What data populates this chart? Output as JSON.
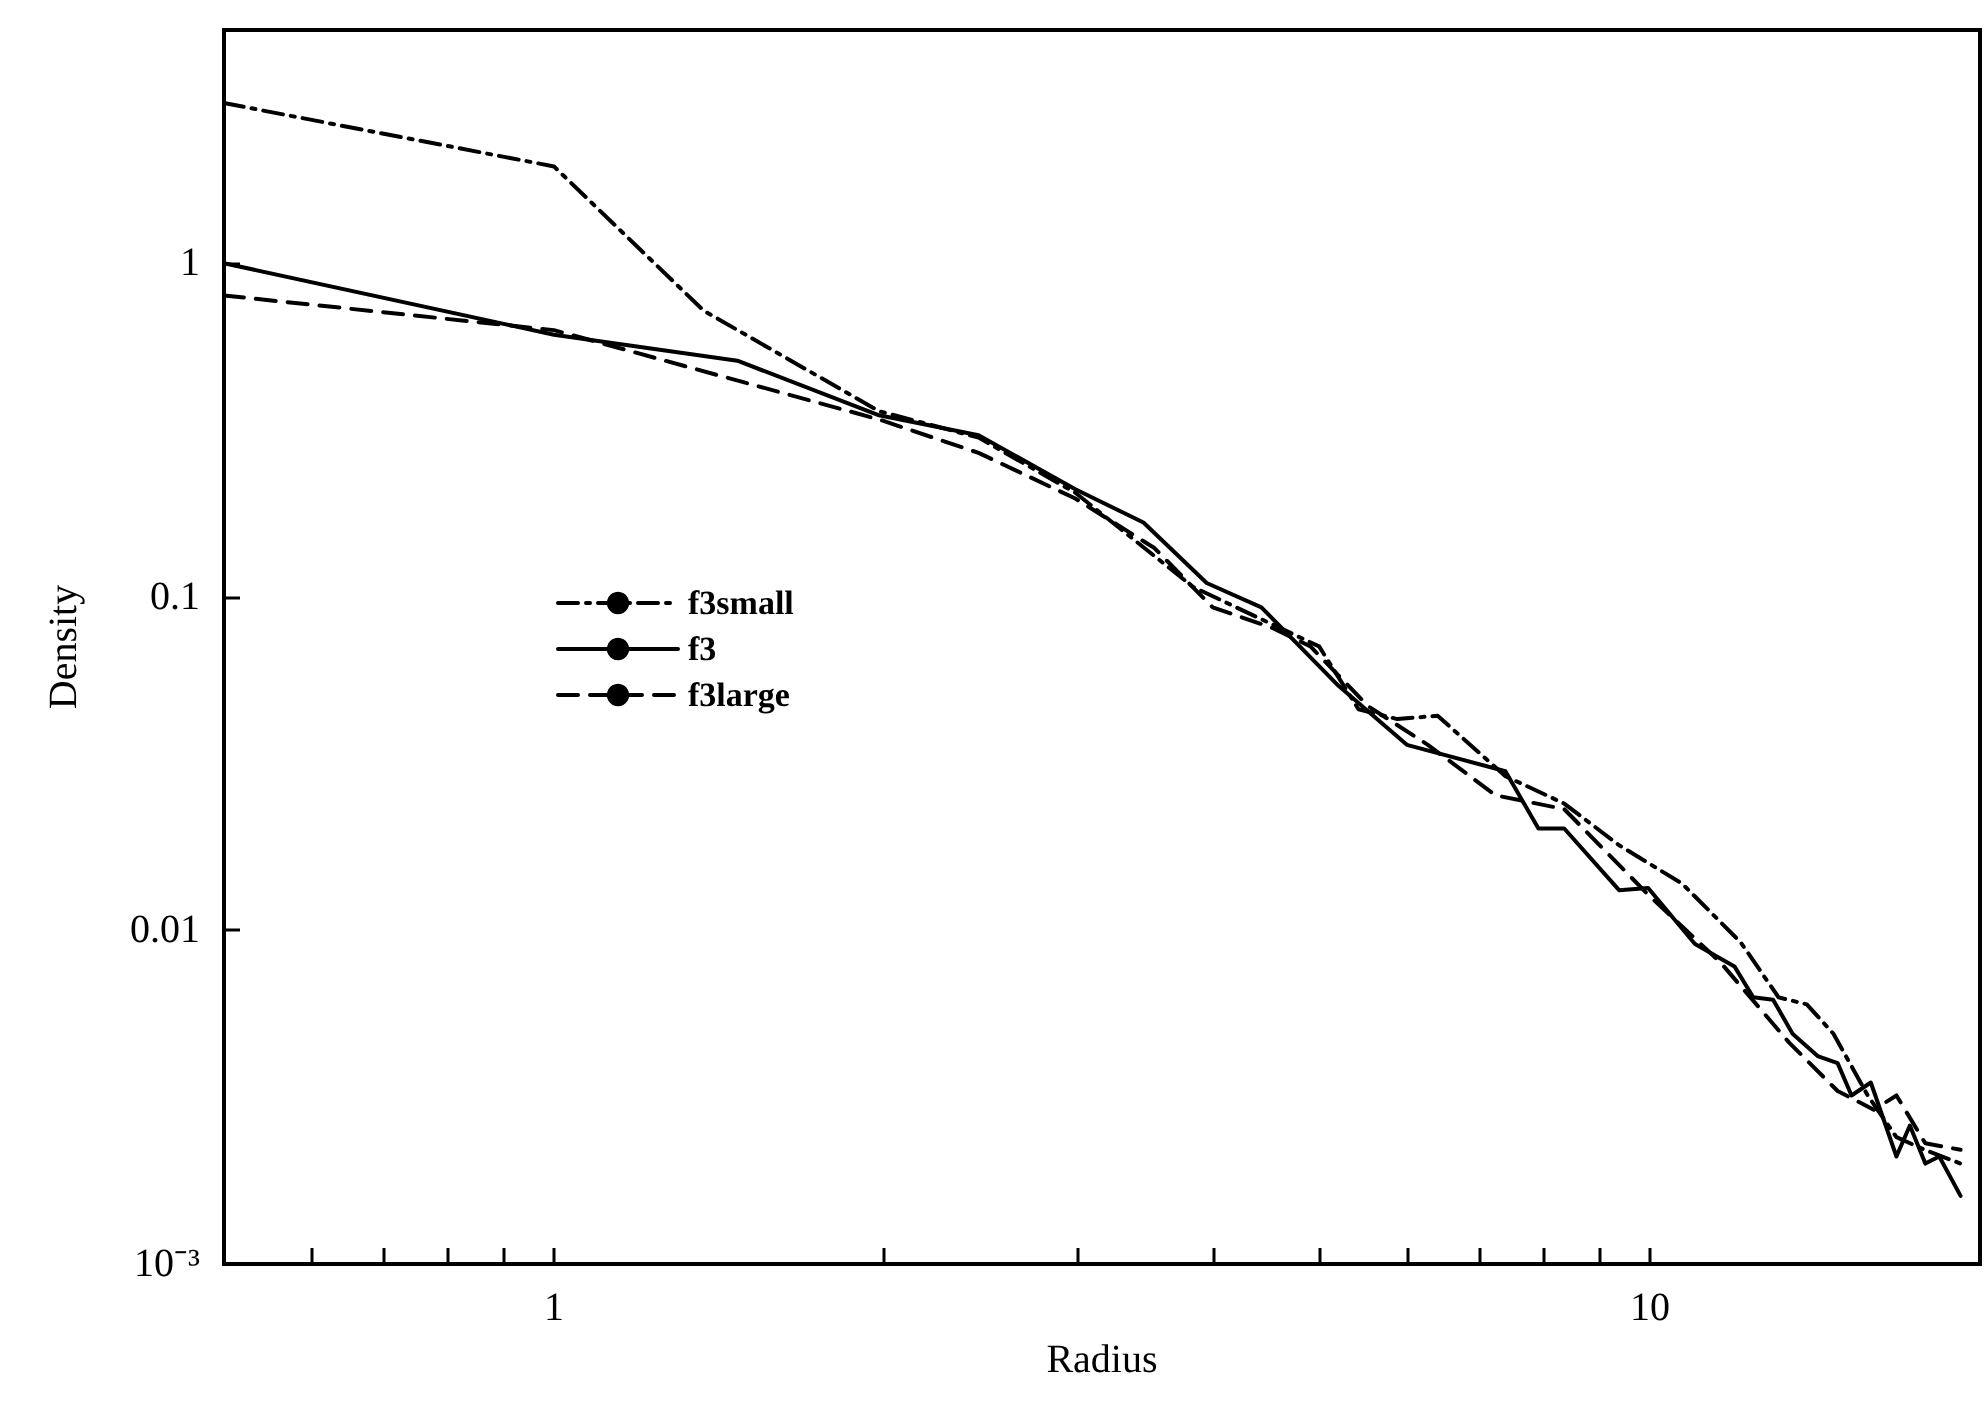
{
  "chart_data": {
    "type": "line",
    "xlabel": "Radius",
    "ylabel": "Density",
    "log": "xy",
    "grid": false,
    "legend": "left",
    "xlim": [
      0.5,
      20
    ],
    "ylim": [
      0.001,
      5
    ],
    "xticks": [
      {
        "value": 0.6,
        "label": null
      },
      {
        "value": 0.7,
        "label": null
      },
      {
        "value": 0.8,
        "label": null
      },
      {
        "value": 0.9,
        "label": null
      },
      1,
      {
        "value": 2,
        "label": null
      },
      {
        "value": 3,
        "label": null
      },
      {
        "value": 4,
        "label": null
      },
      {
        "value": 5,
        "label": null
      },
      {
        "value": 6,
        "label": null
      },
      {
        "value": 7,
        "label": null
      },
      {
        "value": 8,
        "label": null
      },
      {
        "value": 9,
        "label": null
      },
      10,
      {
        "value": 20,
        "label": null
      }
    ],
    "yticks": [
      {
        "value": 0.001,
        "label": "10⁻³"
      },
      0.01,
      0.1,
      1
    ],
    "series": [
      {
        "name": "f3small",
        "color": "#000000",
        "line_style": "dashdot",
        "x": [
          0.5,
          1,
          1.37,
          1.98,
          2.44,
          2.99,
          3.83,
          4.51,
          4.99,
          5.42,
          5.88,
          6.4,
          7.38,
          8.35,
          9.37,
          10.7,
          12.1,
          13.1,
          13.9,
          14.7,
          15.8,
          16.78,
          17.8,
          19.2
        ],
        "values": [
          3.02,
          1.95,
          0.72,
          0.36,
          0.3,
          0.205,
          0.107,
          0.083,
          0.071,
          0.046,
          0.043,
          0.044,
          0.029,
          0.024,
          0.018,
          0.0138,
          0.0092,
          0.0063,
          0.006,
          0.0049,
          0.0032,
          0.0024,
          0.0022,
          0.002
        ]
      },
      {
        "name": "f3",
        "color": "#000000",
        "line_style": "solid",
        "x": [
          0.5,
          1,
          1.47,
          1.98,
          2.44,
          2.99,
          3.45,
          3.94,
          4.42,
          5.2,
          6.0,
          7.38,
          7.91,
          8.35,
          9.37,
          9.96,
          10.99,
          11.94,
          12.42,
          12.95,
          13.49,
          14.22,
          14.83,
          15.27,
          15.9,
          16.78,
          17.26,
          17.83,
          18.36,
          19.2
        ],
        "values": [
          1.0,
          0.61,
          0.51,
          0.35,
          0.305,
          0.21,
          0.167,
          0.11,
          0.093,
          0.054,
          0.036,
          0.03,
          0.0202,
          0.0202,
          0.0132,
          0.0134,
          0.0091,
          0.0078,
          0.0063,
          0.0062,
          0.0049,
          0.0042,
          0.004,
          0.0032,
          0.0035,
          0.0021,
          0.0026,
          0.002,
          0.0021,
          0.0016
        ]
      },
      {
        "name": "f3large",
        "color": "#000000",
        "line_style": "dashed",
        "x": [
          0.5,
          1,
          1.98,
          2.44,
          2.99,
          3.53,
          3.99,
          4.51,
          4.9,
          5.53,
          6.27,
          7.23,
          8.35,
          9.96,
          11.6,
          13.4,
          14.83,
          16.0,
          16.78,
          17.83,
          19.2
        ],
        "values": [
          0.8,
          0.63,
          0.34,
          0.27,
          0.197,
          0.14,
          0.093,
          0.081,
          0.071,
          0.047,
          0.036,
          0.0254,
          0.0231,
          0.0128,
          0.008,
          0.0046,
          0.0033,
          0.0029,
          0.0032,
          0.0023,
          0.0022
        ]
      }
    ]
  }
}
